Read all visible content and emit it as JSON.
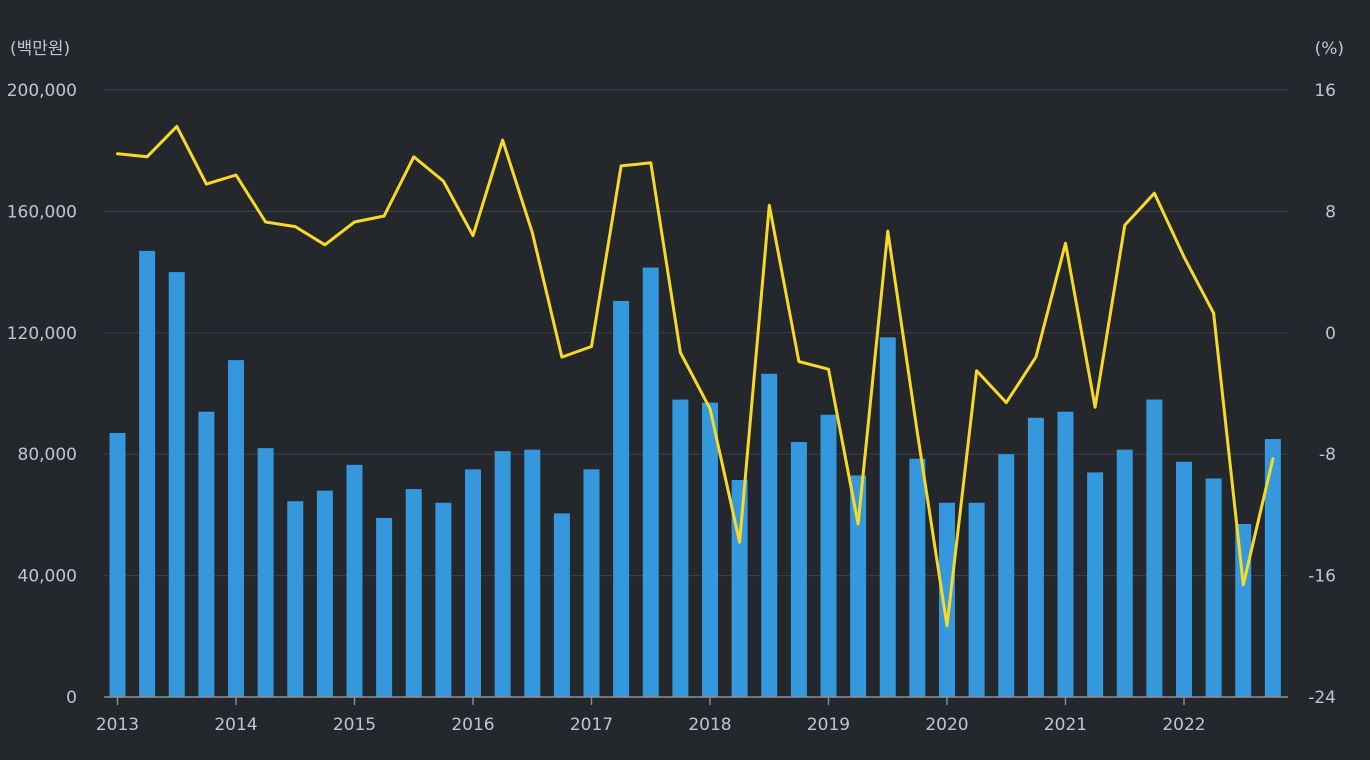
{
  "chart_data": {
    "type": "bar+line",
    "title": "",
    "left_unit_label": "(백만원)",
    "right_unit_label": "(%)",
    "y_left_range": [
      0,
      200000
    ],
    "y_left_ticks": [
      "0",
      "40,000",
      "80,000",
      "120,000",
      "160,000",
      "200,000"
    ],
    "y_right_range": [
      -24,
      16
    ],
    "y_right_ticks": [
      "-24",
      "-16",
      "-8",
      "0",
      "8",
      "16"
    ],
    "x_range": [
      2013,
      2023
    ],
    "x_ticks": [
      "2013",
      "2014",
      "2015",
      "2016",
      "2017",
      "2018",
      "2019",
      "2020",
      "2021",
      "2022"
    ],
    "grid": true,
    "x": [
      "2013 Q1",
      "2013 Q2",
      "2013 Q3",
      "2013 Q4",
      "2014 Q1",
      "2014 Q2",
      "2014 Q3",
      "2014 Q4",
      "2015 Q1",
      "2015 Q2",
      "2015 Q3",
      "2015 Q4",
      "2016 Q1",
      "2016 Q2",
      "2016 Q3",
      "2016 Q4",
      "2017 Q1",
      "2017 Q2",
      "2017 Q3",
      "2017 Q4",
      "2018 Q1",
      "2018 Q2",
      "2018 Q3",
      "2018 Q4",
      "2019 Q1",
      "2019 Q2",
      "2019 Q3",
      "2019 Q4",
      "2020 Q1",
      "2020 Q2",
      "2020 Q3",
      "2020 Q4",
      "2021 Q1",
      "2021 Q2",
      "2021 Q3",
      "2021 Q4",
      "2022 Q1",
      "2022 Q2",
      "2022 Q3",
      "2022 Q4"
    ],
    "series": [
      {
        "type": "bar",
        "axis": "left",
        "color": "#3598dc",
        "values": [
          87000,
          147000,
          140000,
          94000,
          111000,
          82000,
          64500,
          68000,
          76500,
          59000,
          68500,
          64000,
          75000,
          81000,
          81500,
          60500,
          75000,
          130500,
          141500,
          98000,
          97000,
          71500,
          106500,
          84000,
          93000,
          73000,
          118500,
          78500,
          64000,
          64000,
          80000,
          92000,
          94000,
          74000,
          81500,
          98000,
          77500,
          72000,
          57000,
          85000
        ]
      },
      {
        "type": "line",
        "axis": "right",
        "color": "#f7d92a",
        "values": [
          11.8,
          11.6,
          13.6,
          9.8,
          10.4,
          7.3,
          7.0,
          5.8,
          7.3,
          7.7,
          11.6,
          10.0,
          6.4,
          12.7,
          6.6,
          -1.6,
          -0.9,
          11.0,
          11.2,
          -1.3,
          -5.0,
          -13.8,
          8.4,
          -1.9,
          -2.4,
          -12.6,
          6.7,
          -6.6,
          -19.3,
          -2.5,
          -4.6,
          -1.6,
          5.9,
          -4.9,
          7.1,
          9.2,
          5.0,
          1.3,
          -16.6,
          -8.3
        ]
      }
    ]
  }
}
